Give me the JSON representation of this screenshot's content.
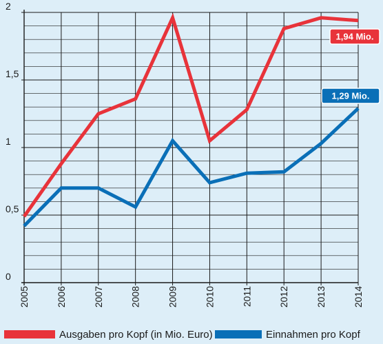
{
  "chart_data": {
    "type": "line",
    "title": "",
    "xlabel": "",
    "ylabel": "",
    "x": [
      "2005",
      "2006",
      "2007",
      "2008",
      "2009",
      "2010",
      "2011",
      "2012",
      "2013",
      "2014"
    ],
    "ylim": [
      0,
      2
    ],
    "y_ticks": [
      "0",
      "0,5",
      "1",
      "1,5",
      "2"
    ],
    "y_tick_values": [
      0,
      0.5,
      1,
      1.5,
      2
    ],
    "grid": true,
    "legend_position": "bottom",
    "series": [
      {
        "name": "Ausgaben pro Kopf (in Mio. Euro)",
        "color": "#e8333a",
        "values": [
          0.49,
          0.88,
          1.25,
          1.36,
          1.96,
          1.05,
          1.28,
          1.88,
          1.96,
          1.94
        ],
        "end_label": "1,94 Mio."
      },
      {
        "name": "Einnahmen pro Kopf",
        "color": "#0a6fb7",
        "values": [
          0.42,
          0.7,
          0.7,
          0.56,
          1.05,
          0.74,
          0.81,
          0.82,
          1.03,
          1.29
        ],
        "end_label": "1,29 Mio."
      }
    ]
  }
}
